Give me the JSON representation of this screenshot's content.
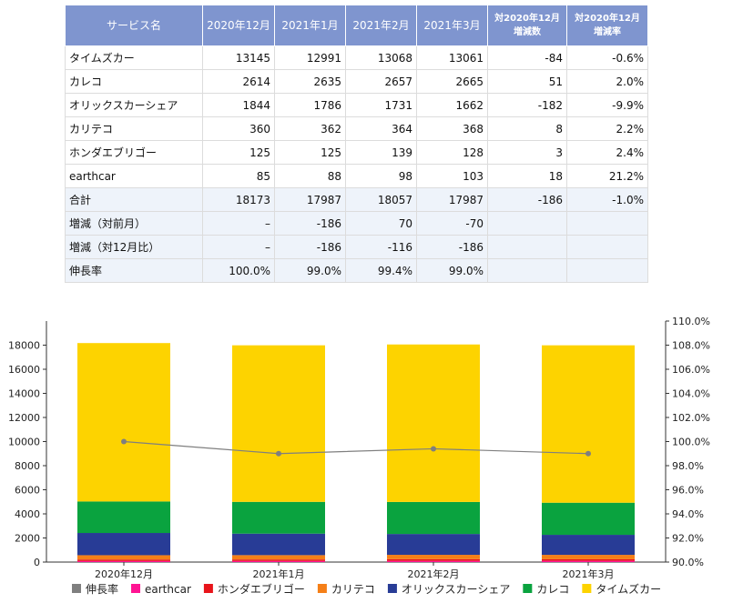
{
  "table": {
    "headers": [
      "サービス名",
      "2020年12月",
      "2021年1月",
      "2021年2月",
      "2021年3月",
      [
        "対2020年12月",
        "増減数"
      ],
      [
        "対2020年12月",
        "増減率"
      ]
    ],
    "rows": [
      [
        "タイムズカー",
        "13145",
        "12991",
        "13068",
        "13061",
        "-84",
        "-0.6%"
      ],
      [
        "カレコ",
        "2614",
        "2635",
        "2657",
        "2665",
        "51",
        "2.0%"
      ],
      [
        "オリックスカーシェア",
        "1844",
        "1786",
        "1731",
        "1662",
        "-182",
        "-9.9%"
      ],
      [
        "カリテコ",
        "360",
        "362",
        "364",
        "368",
        "8",
        "2.2%"
      ],
      [
        "ホンダエブリゴー",
        "125",
        "125",
        "139",
        "128",
        "3",
        "2.4%"
      ],
      [
        "earthcar",
        "85",
        "88",
        "98",
        "103",
        "18",
        "21.2%"
      ]
    ],
    "summary_rows": [
      [
        "合計",
        "18173",
        "17987",
        "18057",
        "17987",
        "-186",
        "-1.0%"
      ],
      [
        "増減（対前月）",
        "–",
        "-186",
        "70",
        "-70",
        "",
        ""
      ],
      [
        "増減（対12月比）",
        "–",
        "-186",
        "-116",
        "-186",
        "",
        ""
      ],
      [
        "伸長率",
        "100.0%",
        "99.0%",
        "99.4%",
        "99.0%",
        "",
        ""
      ]
    ]
  },
  "chart_data": {
    "type": "bar",
    "stacked": true,
    "categories": [
      "2020年12月",
      "2021年1月",
      "2021年2月",
      "2021年3月"
    ],
    "series": [
      {
        "name": "earthcar",
        "color": "#ff1493",
        "values": [
          85,
          88,
          98,
          103
        ]
      },
      {
        "name": "ホンダエブリゴー",
        "color": "#e8141a",
        "values": [
          125,
          125,
          139,
          128
        ]
      },
      {
        "name": "カリテコ",
        "color": "#f57f17",
        "values": [
          360,
          362,
          364,
          368
        ]
      },
      {
        "name": "オリックスカーシェア",
        "color": "#283c96",
        "values": [
          1844,
          1786,
          1731,
          1662
        ]
      },
      {
        "name": "カレコ",
        "color": "#0aa33f",
        "values": [
          2614,
          2635,
          2657,
          2665
        ]
      },
      {
        "name": "タイムズカー",
        "color": "#fdd300",
        "values": [
          13145,
          12991,
          13068,
          13061
        ]
      }
    ],
    "line_series": {
      "name": "伸長率",
      "color": "#7f7f7f",
      "values": [
        100.0,
        99.0,
        99.4,
        99.0
      ]
    },
    "ylim": [
      0,
      20000
    ],
    "yticks": [
      "0",
      "2000",
      "4000",
      "6000",
      "8000",
      "10000",
      "12000",
      "14000",
      "16000",
      "18000"
    ],
    "y2lim": [
      90,
      110
    ],
    "y2ticks": [
      "90.0%",
      "92.0%",
      "94.0%",
      "96.0%",
      "98.0%",
      "100.0%",
      "102.0%",
      "104.0%",
      "106.0%",
      "108.0%",
      "110.0%"
    ],
    "legend": [
      "伸長率",
      "earthcar",
      "ホンダエブリゴー",
      "カリテコ",
      "オリックスカーシェア",
      "カレコ",
      "タイムズカー"
    ],
    "legend_position": "bottom",
    "grid": false
  }
}
